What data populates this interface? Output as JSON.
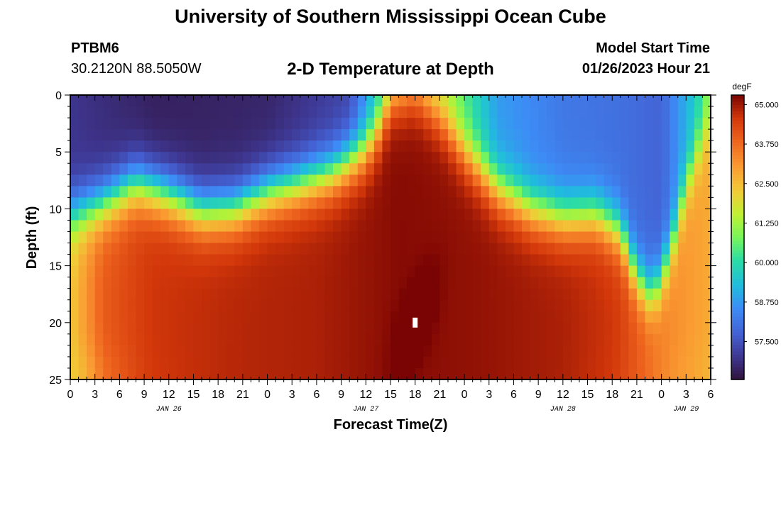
{
  "page": {
    "title_top": "University of Southern Mississippi Ocean Cube",
    "title_bottom": "University of Southern Mississippi Ocean Cube",
    "station_id": "PTBM6",
    "station_coords": "30.2120N  88.5050W",
    "subtitle": "2-D Temperature at Depth",
    "model_start_label": "Model Start Time",
    "model_start_value": "01/26/2023 Hour 21"
  },
  "chart_data": {
    "type": "heatmap",
    "title": "2-D Temperature at Depth",
    "xlabel": "Forecast Time(Z)",
    "ylabel": "Depth (ft)",
    "x_tick_labels": [
      "0",
      "3",
      "6",
      "9",
      "12",
      "15",
      "18",
      "21",
      "0",
      "3",
      "6",
      "9",
      "12",
      "15",
      "18",
      "21",
      "0",
      "3",
      "6",
      "9",
      "12",
      "15",
      "18",
      "21",
      "0",
      "3",
      "6"
    ],
    "x_date_labels": [
      {
        "label": "JAN 26",
        "at_hour": 12
      },
      {
        "label": "JAN 27",
        "at_hour": 36
      },
      {
        "label": "JAN 28",
        "at_hour": 60
      },
      {
        "label": "JAN 29",
        "at_hour": 75
      }
    ],
    "xlim_hours": [
      0,
      78
    ],
    "y_ticks": [
      0,
      5,
      10,
      15,
      20,
      25
    ],
    "ylim": [
      0,
      25
    ],
    "colorbar": {
      "unit": "degF",
      "range": [
        56.3,
        65.3
      ],
      "ticks": [
        "65.000",
        "63.750",
        "62.500",
        "61.250",
        "60.000",
        "58.750",
        "57.500"
      ]
    },
    "thermocline_depth_ft": [
      {
        "hour": 0,
        "depth": 10.5
      },
      {
        "hour": 4,
        "depth": 9.5
      },
      {
        "hour": 8,
        "depth": 7.8
      },
      {
        "hour": 12,
        "depth": 8.8
      },
      {
        "hour": 16,
        "depth": 10.2
      },
      {
        "hour": 20,
        "depth": 10.0
      },
      {
        "hour": 24,
        "depth": 8.6
      },
      {
        "hour": 28,
        "depth": 7.8
      },
      {
        "hour": 32,
        "depth": 6.8
      },
      {
        "hour": 36,
        "depth": 4.8
      },
      {
        "hour": 38,
        "depth": 2.5
      },
      {
        "hour": 39,
        "depth": 0.2
      },
      {
        "hour": 42,
        "depth": 0.0
      },
      {
        "hour": 45,
        "depth": 2.0
      },
      {
        "hour": 48,
        "depth": 5.0
      },
      {
        "hour": 52,
        "depth": 8.2
      },
      {
        "hour": 56,
        "depth": 10.0
      },
      {
        "hour": 60,
        "depth": 10.8
      },
      {
        "hour": 64,
        "depth": 10.5
      },
      {
        "hour": 67,
        "depth": 12.0
      },
      {
        "hour": 69,
        "depth": 16.0
      },
      {
        "hour": 71,
        "depth": 17.8
      },
      {
        "hour": 73,
        "depth": 14.0
      },
      {
        "hour": 75,
        "depth": 8.0
      },
      {
        "hour": 77,
        "depth": 4.0
      },
      {
        "hour": 78,
        "depth": 2.5
      }
    ],
    "surface_temp_degF": [
      {
        "hour": 0,
        "t": 57.0
      },
      {
        "hour": 10,
        "t": 56.6
      },
      {
        "hour": 24,
        "t": 56.7
      },
      {
        "hour": 34,
        "t": 57.3
      },
      {
        "hour": 38,
        "t": 60.0
      },
      {
        "hour": 42,
        "t": 61.8
      },
      {
        "hour": 46,
        "t": 61.2
      },
      {
        "hour": 52,
        "t": 58.8
      },
      {
        "hour": 60,
        "t": 58.2
      },
      {
        "hour": 68,
        "t": 58.0
      },
      {
        "hour": 72,
        "t": 57.8
      },
      {
        "hour": 76,
        "t": 59.5
      },
      {
        "hour": 78,
        "t": 61.0
      }
    ],
    "deep_temp_degF": [
      {
        "hour": 0,
        "t": 62.3
      },
      {
        "hour": 4,
        "t": 64.0
      },
      {
        "hour": 10,
        "t": 64.6
      },
      {
        "hour": 20,
        "t": 64.8
      },
      {
        "hour": 30,
        "t": 64.9
      },
      {
        "hour": 40,
        "t": 65.2
      },
      {
        "hour": 50,
        "t": 65.1
      },
      {
        "hour": 60,
        "t": 64.9
      },
      {
        "hour": 66,
        "t": 64.6
      },
      {
        "hour": 70,
        "t": 63.9
      },
      {
        "hour": 73,
        "t": 63.3
      },
      {
        "hour": 76,
        "t": 63.0
      },
      {
        "hour": 78,
        "t": 62.8
      }
    ],
    "coastal_edge_temp_degF": 62.3,
    "hotspot": {
      "hour": 42,
      "depth": 20.0,
      "t_max": 65.8
    },
    "missing_cell": {
      "hour": 42,
      "depth": 20.0
    }
  }
}
